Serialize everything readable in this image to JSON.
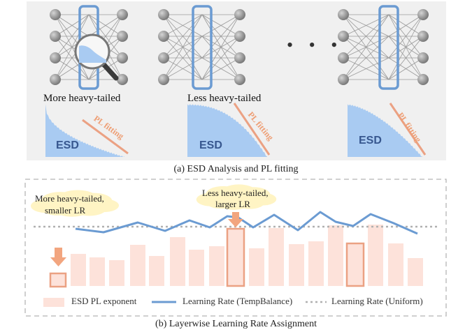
{
  "panel_a": {
    "caption": "(a) ESD Analysis and PL fitting",
    "labels": [
      "More heavy-tailed",
      "Less heavy-tailed"
    ],
    "esd_label": "ESD",
    "pl_fitting_label": "PL fitting",
    "ellipsis": "• • •"
  },
  "panel_b": {
    "caption": "(b) Layerwise Learning Rate Assignment",
    "callouts": [
      {
        "line1": "More heavy-tailed,",
        "line2": "smaller LR"
      },
      {
        "line1": "Less heavy-tailed,",
        "line2": "larger LR"
      }
    ],
    "legend": {
      "bars": "ESD PL exponent",
      "tempbalance": "Learning Rate (TempBalance)",
      "uniform": "Learning Rate (Uniform)"
    }
  },
  "colors": {
    "esd_fill": "#a9cbf2",
    "lr_line": "#6b9bd2",
    "bars": "#fde2da",
    "highlight": "#eba183",
    "node": "#8f8f8f",
    "cloud": "#fff4c4"
  }
}
